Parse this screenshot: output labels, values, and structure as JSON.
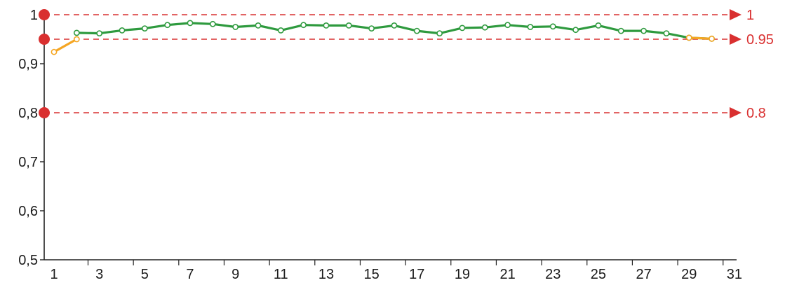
{
  "chart_data": {
    "type": "line",
    "title": "",
    "xlabel": "",
    "ylabel": "",
    "ylim": [
      0.5,
      1.0
    ],
    "y_ticks": [
      {
        "value": 0.5,
        "label": "0,5"
      },
      {
        "value": 0.6,
        "label": "0,6"
      },
      {
        "value": 0.7,
        "label": "0,7"
      },
      {
        "value": 0.8,
        "label": "0,8"
      },
      {
        "value": 0.9,
        "label": "0,9"
      },
      {
        "value": 1.0,
        "label": "1"
      }
    ],
    "x_ticks": [
      "1",
      "3",
      "5",
      "7",
      "9",
      "11",
      "13",
      "15",
      "17",
      "19",
      "21",
      "23",
      "25",
      "27",
      "29",
      "31"
    ],
    "x": [
      1,
      2,
      3,
      4,
      5,
      6,
      7,
      8,
      9,
      10,
      11,
      12,
      13,
      14,
      15,
      16,
      17,
      18,
      19,
      20,
      21,
      22,
      23,
      24,
      25,
      26,
      27,
      28,
      29,
      30
    ],
    "series": [
      {
        "color": "#f5a623",
        "x": [
          1,
          2
        ],
        "values": [
          0.924,
          0.95
        ]
      },
      {
        "color": "#2e9a3e",
        "x": [
          2,
          3,
          4,
          5,
          6,
          7,
          8,
          9,
          10,
          11,
          12,
          13,
          14,
          15,
          16,
          17,
          18,
          19,
          20,
          21,
          22,
          23,
          24,
          25,
          26,
          27,
          28,
          29,
          30
        ],
        "values": [
          0.963,
          0.962,
          0.968,
          0.972,
          0.979,
          0.983,
          0.981,
          0.975,
          0.978,
          0.968,
          0.979,
          0.978,
          0.978,
          0.972,
          0.978,
          0.967,
          0.962,
          0.973,
          0.974,
          0.979,
          0.975,
          0.976,
          0.969,
          0.978,
          0.967,
          0.967,
          0.962,
          0.953,
          0.951
        ]
      },
      {
        "color": "#f5a623",
        "x": [
          29,
          30
        ],
        "values": [
          0.953,
          0.951
        ]
      }
    ],
    "reference_lines": [
      {
        "value": 1.0,
        "label": "1",
        "color": "#d93030"
      },
      {
        "value": 0.95,
        "label": "0.95",
        "color": "#d93030"
      },
      {
        "value": 0.8,
        "label": "0.8",
        "color": "#d93030"
      }
    ],
    "grid": false,
    "legend": "none"
  }
}
